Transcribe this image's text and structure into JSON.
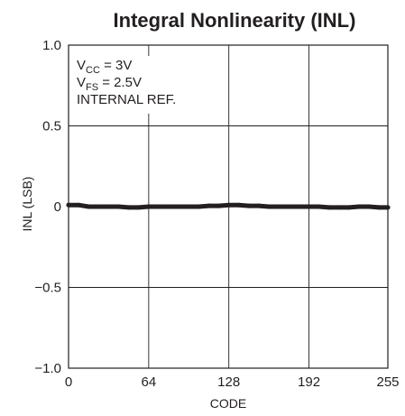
{
  "chart_data": {
    "type": "line",
    "title": "Integral Nonlinearity (INL)",
    "xlabel": "CODE",
    "ylabel": "INL (LSB)",
    "xlim": [
      0,
      255
    ],
    "ylim": [
      -1.0,
      1.0
    ],
    "x_ticks": [
      0,
      64,
      128,
      192,
      255
    ],
    "x_tick_labels": [
      "0",
      "64",
      "128",
      "192",
      "255"
    ],
    "y_ticks": [
      1.0,
      0.5,
      0,
      -0.5,
      -1.0
    ],
    "y_tick_labels": [
      "1.0",
      "0.5",
      "0",
      "−0.5",
      "−1.0"
    ],
    "grid": true,
    "annotations": [
      {
        "main": "V",
        "sub": "CC",
        "rest": " = 3V"
      },
      {
        "main": "V",
        "sub": "FS",
        "rest": " = 2.5V"
      },
      {
        "main": "INTERNAL REF.",
        "sub": "",
        "rest": ""
      }
    ],
    "series": [
      {
        "color": "#231f20",
        "x": [
          0,
          8,
          16,
          24,
          32,
          40,
          48,
          56,
          64,
          72,
          80,
          88,
          96,
          104,
          112,
          120,
          128,
          136,
          144,
          152,
          160,
          168,
          176,
          184,
          192,
          200,
          208,
          216,
          224,
          232,
          240,
          248,
          255
        ],
        "y": [
          0.01,
          0.01,
          0.0,
          0.0,
          0.0,
          0.0,
          -0.005,
          -0.005,
          0.0,
          0.0,
          0.0,
          0.0,
          0.0,
          0.0,
          0.005,
          0.005,
          0.01,
          0.01,
          0.005,
          0.005,
          0.0,
          0.0,
          0.0,
          0.0,
          0.0,
          0.0,
          -0.005,
          -0.005,
          -0.005,
          0.0,
          0.0,
          -0.005,
          -0.005
        ]
      }
    ]
  }
}
